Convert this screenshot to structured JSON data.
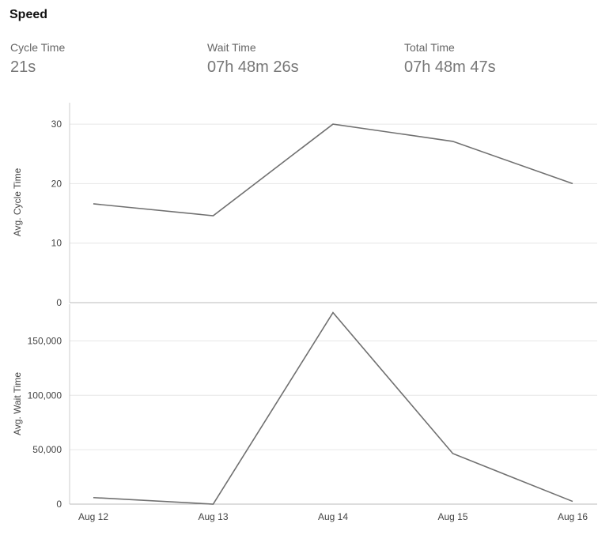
{
  "header": {
    "title": "Speed"
  },
  "metrics": [
    {
      "label": "Cycle Time",
      "value": "21s"
    },
    {
      "label": "Wait Time",
      "value": "07h 48m 26s"
    },
    {
      "label": "Total Time",
      "value": "07h 48m 47s"
    }
  ],
  "chart_data": [
    {
      "type": "line",
      "categories": [
        "Aug 12",
        "Aug 13",
        "Aug 14",
        "Aug 15",
        "Aug 16"
      ],
      "ylabel": "Avg. Cycle Time",
      "ylim": [
        0,
        32
      ],
      "yticks": [
        0,
        10,
        20,
        30
      ],
      "ytick_labels": [
        "0",
        "10",
        "20",
        "30"
      ],
      "grid": true,
      "series": [
        {
          "values": [
            16.6,
            14.6,
            30,
            27.1,
            20
          ]
        }
      ],
      "color": "#707070"
    },
    {
      "type": "line",
      "categories": [
        "Aug 12",
        "Aug 13",
        "Aug 14",
        "Aug 15",
        "Aug 16"
      ],
      "ylabel": "Avg. Wait Time",
      "ylim": [
        0,
        175000
      ],
      "yticks": [
        0,
        50000,
        100000,
        150000
      ],
      "ytick_labels": [
        "0",
        "50,000",
        "100,000",
        "150,000"
      ],
      "grid": true,
      "series": [
        {
          "values": [
            6000,
            0,
            176000,
            46500,
            2500
          ]
        }
      ],
      "color": "#707070"
    }
  ]
}
